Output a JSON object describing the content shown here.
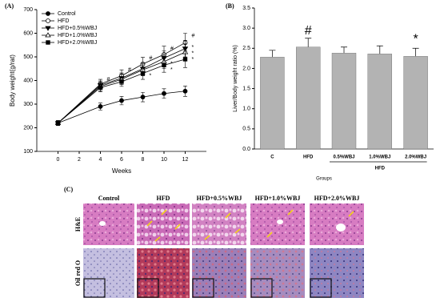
{
  "chart_data": [
    {
      "type": "line",
      "panel_label": "(A)",
      "x_label": "Weeks",
      "y_label": "Body weight(g/rat)",
      "x": [
        0,
        4,
        6,
        8,
        10,
        12
      ],
      "xlim": [
        -2,
        14
      ],
      "xticks": [
        0,
        2,
        4,
        6,
        8,
        10,
        12
      ],
      "ylim": [
        100,
        700
      ],
      "yticks": [
        100,
        200,
        300,
        400,
        500,
        600,
        700
      ],
      "legend": "upper left",
      "series": [
        {
          "name": "Control",
          "color": "#000000",
          "marker": "circle",
          "values": [
            220,
            290,
            315,
            330,
            345,
            355
          ],
          "errors": [
            10,
            15,
            18,
            20,
            20,
            22
          ]
        },
        {
          "name": "HFD",
          "color": "#000000",
          "marker": "circle-open",
          "values": [
            220,
            385,
            420,
            470,
            510,
            560
          ],
          "errors": [
            10,
            20,
            25,
            28,
            35,
            40
          ]
        },
        {
          "name": "HFD+0.5%WBJ",
          "color": "#000000",
          "marker": "triangle-down",
          "values": [
            220,
            380,
            410,
            450,
            495,
            535
          ],
          "errors": [
            10,
            18,
            22,
            25,
            30,
            35
          ]
        },
        {
          "name": "HFD+1.0%WBJ",
          "color": "#000000",
          "marker": "triangle-open",
          "values": [
            220,
            375,
            405,
            445,
            480,
            520
          ],
          "errors": [
            10,
            18,
            22,
            25,
            30,
            35
          ]
        },
        {
          "name": "HFD+2.0%WBJ",
          "color": "#000000",
          "marker": "square",
          "values": [
            220,
            370,
            395,
            430,
            465,
            490
          ],
          "errors": [
            10,
            18,
            20,
            25,
            30,
            35
          ]
        }
      ],
      "annotations": [
        {
          "text": "#",
          "x": 4.6,
          "y": 405
        },
        {
          "text": "#",
          "x": 6.6,
          "y": 445
        },
        {
          "text": "#",
          "x": 8.6,
          "y": 495
        },
        {
          "text": "#",
          "x": 10.6,
          "y": 535
        },
        {
          "text": "#",
          "x": 12.6,
          "y": 590
        },
        {
          "text": "*",
          "x": 8.6,
          "y": 420
        },
        {
          "text": "*",
          "x": 10.6,
          "y": 470
        },
        {
          "text": "*",
          "x": 10.6,
          "y": 445
        },
        {
          "text": "*",
          "x": 12.6,
          "y": 540
        },
        {
          "text": "*",
          "x": 12.6,
          "y": 515
        },
        {
          "text": "*",
          "x": 12.6,
          "y": 490
        }
      ]
    },
    {
      "type": "bar",
      "panel_label": "(B)",
      "x_label": "Groups",
      "y_label": "Liver/Body weight ratio (%)",
      "group_label": "HFD",
      "categories": [
        "C",
        "HFD",
        "0.5%WBJ",
        "1.0%WBJ",
        "2.0%WBJ"
      ],
      "values": [
        2.28,
        2.53,
        2.38,
        2.36,
        2.3
      ],
      "errors": [
        0.17,
        0.22,
        0.15,
        0.2,
        0.2
      ],
      "color": "#b3b3b3",
      "ylim": [
        0,
        3.5
      ],
      "yticks": [
        {
          "value": 0,
          "label": "0.0"
        },
        0.5,
        {
          "value": 1,
          "label": "1.0"
        },
        1.5,
        {
          "value": 2,
          "label": "2.0"
        },
        2.5,
        {
          "value": 3,
          "label": "3.0"
        },
        3.5
      ],
      "annotations": [
        {
          "text": "#",
          "x": 1,
          "y": 2.93
        },
        {
          "text": "*",
          "x": 4,
          "y": 2.72
        }
      ]
    }
  ],
  "panel_c": {
    "panel_label": "(C)",
    "columns": [
      "Control",
      "HFD",
      "HFD+0.5%WBJ",
      "HFD+1.0%WBJ",
      "HFD+2.0%WBJ"
    ],
    "rows": [
      "H&E",
      "Oil red O"
    ]
  }
}
